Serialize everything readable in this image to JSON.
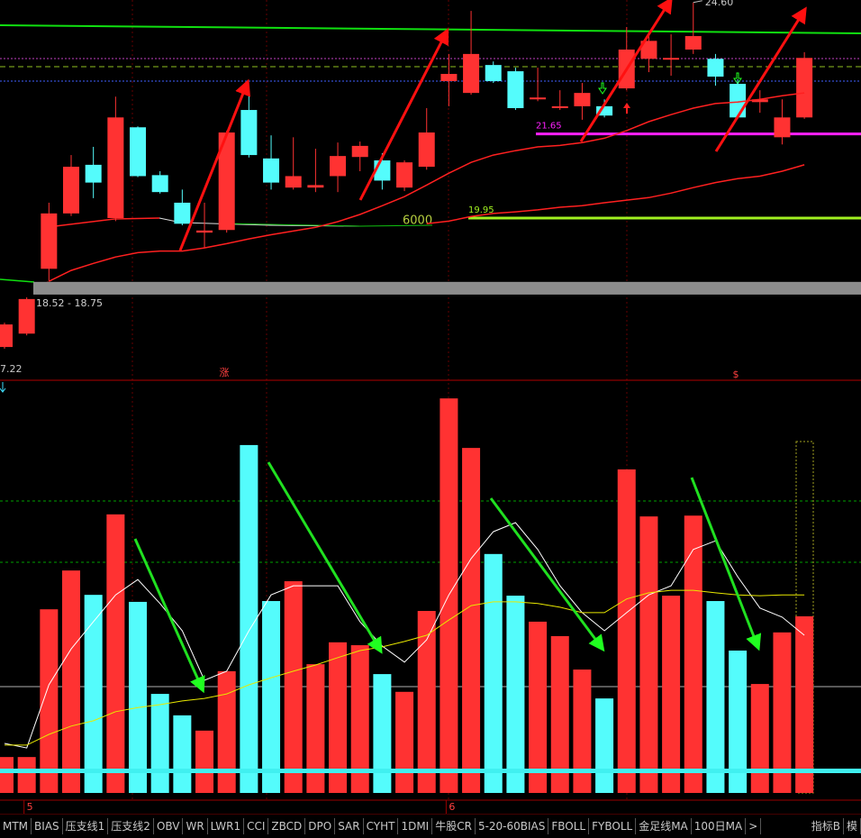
{
  "chart_data": [
    {
      "type": "candlestick",
      "log_scale": true,
      "ylim": [
        17.07,
        24.66
      ],
      "up_color": "#ff3232",
      "down_color": "#54fcfc",
      "open": [
        17.6,
        17.83,
        18.99,
        20.04,
        21.01,
        19.95,
        21.79,
        20.8,
        20.25,
        19.67,
        19.72,
        22.16,
        21.14,
        20.55,
        20.55,
        20.78,
        21.17,
        21.1,
        20.55,
        20.97,
        22.79,
        22.53,
        23.15,
        23.01,
        22.39,
        22.2,
        22.24,
        22.24,
        22.63,
        23.29,
        23.27,
        23.5,
        23.29,
        22.73,
        22.33,
        21.58,
        22.0
      ],
      "high": [
        18.02,
        18.47,
        20.25,
        21.21,
        21.38,
        22.45,
        21.81,
        20.88,
        20.51,
        20.25,
        21.72,
        22.69,
        21.62,
        21.58,
        21.34,
        21.47,
        21.49,
        21.25,
        21.1,
        22.2,
        23.4,
        24.4,
        23.23,
        23.09,
        23.09,
        22.59,
        22.75,
        22.39,
        24.02,
        23.91,
        23.85,
        24.6,
        23.4,
        22.83,
        22.59,
        22.39,
        23.44
      ],
      "low": [
        17.57,
        17.8,
        18.77,
        19.99,
        20.34,
        19.89,
        20.76,
        20.43,
        19.81,
        19.38,
        19.67,
        21.16,
        20.51,
        20.51,
        20.46,
        20.46,
        20.88,
        20.51,
        20.48,
        20.91,
        22.24,
        22.49,
        22.75,
        22.16,
        22.35,
        22.16,
        21.95,
        22.0,
        22.59,
        22.99,
        22.91,
        23.4,
        22.69,
        21.97,
        22.1,
        21.43,
        21.97
      ],
      "close": [
        17.99,
        18.44,
        20.04,
        20.97,
        20.65,
        22.0,
        20.78,
        20.46,
        19.84,
        19.71,
        21.68,
        21.21,
        20.65,
        20.78,
        20.6,
        21.19,
        21.4,
        20.69,
        21.06,
        21.68,
        22.95,
        23.4,
        22.79,
        22.2,
        22.43,
        22.24,
        22.53,
        22.04,
        23.5,
        23.7,
        23.31,
        23.81,
        22.89,
        22.0,
        22.39,
        22.0,
        23.31
      ],
      "series": [
        {
          "color": "#ff2020",
          "values": [
            null,
            null,
            18.76,
            18.96,
            19.09,
            19.21,
            19.29,
            19.32,
            19.32,
            19.38,
            19.46,
            19.55,
            19.63,
            19.7,
            19.77,
            19.88,
            20.02,
            20.19,
            20.37,
            20.6,
            20.84,
            21.06,
            21.21,
            21.3,
            21.38,
            21.41,
            21.47,
            21.56,
            21.72,
            21.91,
            22.06,
            22.2,
            22.3,
            22.33,
            22.39,
            22.47,
            22.53
          ]
        },
        {
          "color": "#ff2020",
          "values": [
            null,
            null,
            null,
            null,
            null,
            null,
            null,
            null,
            null,
            null,
            null,
            null,
            null,
            null,
            null,
            null,
            null,
            null,
            null,
            19.84,
            19.89,
            19.98,
            20.04,
            20.07,
            20.11,
            20.16,
            20.19,
            20.25,
            20.3,
            20.35,
            20.44,
            20.55,
            20.65,
            20.73,
            20.78,
            20.88,
            21.01
          ]
        }
      ],
      "band": {
        "label": "18.52 - 18.75",
        "low": 18.52,
        "high": 18.75,
        "color": "#8c8c8c"
      },
      "levels": [
        {
          "value": 21.65,
          "color": "#ff20ff"
        },
        {
          "value": 19.95,
          "color": "#a0f020"
        }
      ],
      "high_label": {
        "value": 24.6,
        "label": "24.60"
      },
      "cut_label": "7.22",
      "annotation": "6000",
      "markers": [
        "涨",
        "$"
      ]
    },
    {
      "type": "bar",
      "ylim": [
        0,
        100
      ],
      "categories": [
        null,
        "5",
        null,
        null,
        null,
        null,
        null,
        null,
        null,
        null,
        null,
        null,
        null,
        null,
        null,
        null,
        null,
        null,
        null,
        null,
        "6",
        null,
        null,
        null,
        null,
        null,
        null,
        null,
        null,
        null,
        null,
        null,
        null,
        null,
        null,
        null,
        null
      ],
      "values": [
        8.7,
        8.7,
        44.5,
        53.9,
        48.0,
        67.5,
        46.3,
        24.0,
        18.8,
        15.1,
        29.5,
        84.3,
        46.5,
        51.3,
        31.2,
        36.5,
        35.8,
        28.8,
        24.5,
        44.1,
        95.6,
        83.6,
        57.9,
        47.8,
        41.5,
        38.0,
        29.9,
        22.9,
        78.4,
        67.0,
        47.8,
        67.2,
        46.5,
        34.5,
        26.4,
        38.9,
        42.8
      ],
      "series": [
        {
          "color": "#ffffff",
          "values": [
            12.0,
            10.9,
            26.2,
            34.9,
            41.5,
            48.0,
            51.7,
            45.9,
            39.3,
            27.3,
            29.5,
            39.3,
            48.0,
            50.2,
            50.2,
            50.2,
            41.5,
            35.6,
            31.7,
            37.1,
            48.0,
            56.8,
            63.3,
            65.5,
            59.0,
            50.2,
            43.7,
            39.3,
            43.7,
            48.0,
            50.2,
            59.0,
            61.1,
            52.4,
            44.8,
            42.6,
            38.2
          ]
        },
        {
          "color": "#e8e800",
          "values": [
            11.6,
            11.6,
            14.2,
            16.2,
            17.5,
            19.7,
            20.7,
            21.4,
            22.3,
            22.9,
            24.0,
            26.2,
            27.9,
            29.5,
            31.0,
            32.8,
            34.5,
            35.4,
            36.7,
            38.2,
            41.9,
            45.4,
            46.3,
            46.3,
            45.9,
            45.0,
            43.7,
            43.7,
            47.0,
            48.5,
            49.1,
            49.1,
            48.5,
            48.0,
            47.8,
            48.0,
            48.0
          ]
        }
      ]
    }
  ],
  "tabs": [
    "MTM",
    "BIAS",
    "压支线1",
    "压支线2",
    "OBV",
    "WR",
    "LWR1",
    "CCI",
    "ZBCD",
    "DPO",
    "SAR",
    "CYHT",
    "1DMI",
    "牛股CR",
    "5-20-60BIAS",
    "FBOLL",
    "FYBOLL",
    "金足线MA",
    "100日MA",
    ">"
  ],
  "right_tabs": [
    "指标B",
    "模"
  ]
}
